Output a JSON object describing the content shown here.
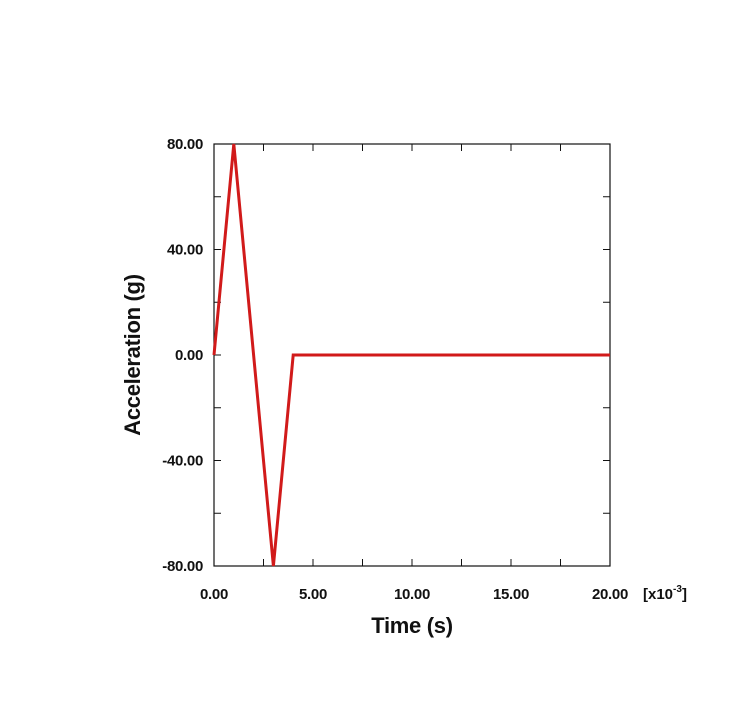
{
  "chart_data": {
    "type": "line",
    "xlabel": "Time (s)",
    "ylabel": "Acceleration (g)",
    "x_multiplier_label": {
      "prefix": "[x10",
      "exponent": "-3",
      "suffix": "]"
    },
    "xlim": [
      0,
      20
    ],
    "ylim": [
      -80,
      80
    ],
    "x_ticks": [
      0,
      5,
      10,
      15,
      20
    ],
    "x_tick_labels": [
      "0.00",
      "5.00",
      "10.00",
      "15.00",
      "20.00"
    ],
    "y_ticks": [
      -80,
      -40,
      0,
      40,
      80
    ],
    "y_tick_labels": [
      "-80.00",
      "-40.00",
      "0.00",
      "40.00",
      "80.00"
    ],
    "grid": false,
    "legend": "none",
    "series": [
      {
        "color": "#d11a1a",
        "x": [
          0,
          1,
          3,
          4,
          20
        ],
        "y": [
          0,
          80,
          -80,
          0,
          0
        ]
      }
    ]
  }
}
